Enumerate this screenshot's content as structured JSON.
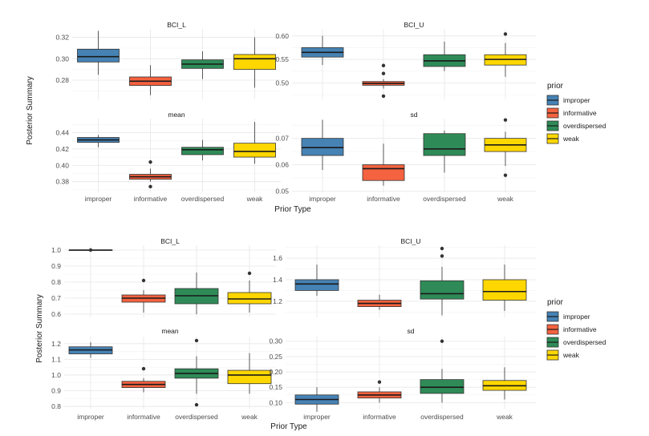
{
  "chart_data": [
    {
      "type": "boxplot",
      "xlabel": "Prior Type",
      "ylabel": "Posterior Summary",
      "categories": [
        "improper",
        "informative",
        "overdispersed",
        "weak"
      ],
      "legend": {
        "title": "prior",
        "entries": [
          "improper",
          "informative",
          "overdispersed",
          "weak"
        ]
      },
      "colors": {
        "improper": "#4682b4",
        "informative": "#f4623f",
        "overdispersed": "#2e8b57",
        "weak": "#ffd700"
      },
      "panels": [
        {
          "title": "BCI_L",
          "ylim": [
            0.262,
            0.328
          ],
          "yticks": [
            0.28,
            0.3,
            0.32
          ],
          "ytick_labels": [
            "0.28",
            "0.30",
            "0.32"
          ],
          "boxes": [
            {
              "category": "improper",
              "min": 0.285,
              "q1": 0.297,
              "median": 0.302,
              "q3": 0.309,
              "max": 0.326,
              "outliers": []
            },
            {
              "category": "informative",
              "min": 0.266,
              "q1": 0.275,
              "median": 0.279,
              "q3": 0.283,
              "max": 0.294,
              "outliers": []
            },
            {
              "category": "overdispersed",
              "min": 0.281,
              "q1": 0.291,
              "median": 0.295,
              "q3": 0.299,
              "max": 0.307,
              "outliers": []
            },
            {
              "category": "weak",
              "min": 0.273,
              "q1": 0.29,
              "median": 0.3,
              "q3": 0.304,
              "max": 0.32,
              "outliers": []
            }
          ]
        },
        {
          "title": "BCI_U",
          "ylim": [
            0.465,
            0.615
          ],
          "yticks": [
            0.5,
            0.55,
            0.6
          ],
          "ytick_labels": [
            "0.50",
            "0.55",
            "0.60"
          ],
          "boxes": [
            {
              "category": "improper",
              "min": 0.538,
              "q1": 0.555,
              "median": 0.565,
              "q3": 0.575,
              "max": 0.6,
              "outliers": []
            },
            {
              "category": "informative",
              "min": 0.488,
              "q1": 0.495,
              "median": 0.499,
              "q3": 0.503,
              "max": 0.508,
              "outliers": [
                0.472,
                0.52,
                0.537
              ]
            },
            {
              "category": "overdispersed",
              "min": 0.525,
              "q1": 0.535,
              "median": 0.547,
              "q3": 0.56,
              "max": 0.588,
              "outliers": []
            },
            {
              "category": "weak",
              "min": 0.513,
              "q1": 0.538,
              "median": 0.55,
              "q3": 0.56,
              "max": 0.585,
              "outliers": [
                0.604
              ]
            }
          ]
        },
        {
          "title": "mean",
          "ylim": [
            0.367,
            0.457
          ],
          "yticks": [
            0.38,
            0.4,
            0.42,
            0.44
          ],
          "ytick_labels": [
            "0.38",
            "0.40",
            "0.42",
            "0.44"
          ],
          "boxes": [
            {
              "category": "improper",
              "min": 0.422,
              "q1": 0.428,
              "median": 0.431,
              "q3": 0.434,
              "max": 0.437,
              "outliers": []
            },
            {
              "category": "informative",
              "min": 0.38,
              "q1": 0.383,
              "median": 0.386,
              "q3": 0.389,
              "max": 0.396,
              "outliers": [
                0.374,
                0.404
              ]
            },
            {
              "category": "overdispersed",
              "min": 0.406,
              "q1": 0.413,
              "median": 0.419,
              "q3": 0.422,
              "max": 0.431,
              "outliers": []
            },
            {
              "category": "weak",
              "min": 0.402,
              "q1": 0.41,
              "median": 0.417,
              "q3": 0.427,
              "max": 0.453,
              "outliers": []
            }
          ]
        },
        {
          "title": "sd",
          "ylim": [
            0.0495,
            0.0775
          ],
          "yticks": [
            0.05,
            0.06,
            0.07
          ],
          "ytick_labels": [
            "0.05",
            "0.06",
            "0.07"
          ],
          "boxes": [
            {
              "category": "improper",
              "min": 0.058,
              "q1": 0.0635,
              "median": 0.0665,
              "q3": 0.07,
              "max": 0.077,
              "outliers": []
            },
            {
              "category": "informative",
              "min": 0.052,
              "q1": 0.054,
              "median": 0.0585,
              "q3": 0.06,
              "max": 0.068,
              "outliers": []
            },
            {
              "category": "overdispersed",
              "min": 0.057,
              "q1": 0.0635,
              "median": 0.066,
              "q3": 0.0718,
              "max": 0.073,
              "outliers": []
            },
            {
              "category": "weak",
              "min": 0.0595,
              "q1": 0.065,
              "median": 0.0675,
              "q3": 0.07,
              "max": 0.0725,
              "outliers": [
                0.056,
                0.077
              ]
            }
          ]
        }
      ]
    },
    {
      "type": "boxplot",
      "xlabel": "Prior Type",
      "ylabel": "Posterior Summary",
      "categories": [
        "improper",
        "informative",
        "overdispersed",
        "weak"
      ],
      "legend": {
        "title": "prior",
        "entries": [
          "improper",
          "informative",
          "overdispersed",
          "weak"
        ]
      },
      "colors": {
        "improper": "#4682b4",
        "informative": "#f4623f",
        "overdispersed": "#2e8b57",
        "weak": "#ffd700"
      },
      "panels": [
        {
          "title": "BCI_L",
          "ylim": [
            0.58,
            1.03
          ],
          "yticks": [
            0.6,
            0.7,
            0.8,
            0.9,
            1.0
          ],
          "ytick_labels": [
            "0.6",
            "0.7",
            "0.8",
            "0.9",
            "1.0"
          ],
          "boxes": [
            {
              "category": "improper",
              "min": 1.0,
              "q1": 1.0,
              "median": 1.0,
              "q3": 1.0,
              "max": 1.0,
              "outliers": [
                1.0
              ]
            },
            {
              "category": "informative",
              "min": 0.61,
              "q1": 0.675,
              "median": 0.7,
              "q3": 0.72,
              "max": 0.75,
              "outliers": [
                0.81
              ]
            },
            {
              "category": "overdispersed",
              "min": 0.6,
              "q1": 0.665,
              "median": 0.715,
              "q3": 0.76,
              "max": 0.86,
              "outliers": []
            },
            {
              "category": "weak",
              "min": 0.61,
              "q1": 0.665,
              "median": 0.695,
              "q3": 0.735,
              "max": 0.81,
              "outliers": [
                0.855
              ]
            }
          ]
        },
        {
          "title": "BCI_U",
          "ylim": [
            1.05,
            1.72
          ],
          "yticks": [
            1.2,
            1.4,
            1.6
          ],
          "ytick_labels": [
            "1.2",
            "1.4",
            "1.6"
          ],
          "boxes": [
            {
              "category": "improper",
              "min": 1.25,
              "q1": 1.3,
              "median": 1.36,
              "q3": 1.4,
              "max": 1.54,
              "outliers": []
            },
            {
              "category": "informative",
              "min": 1.12,
              "q1": 1.15,
              "median": 1.18,
              "q3": 1.21,
              "max": 1.26,
              "outliers": []
            },
            {
              "category": "overdispersed",
              "min": 1.07,
              "q1": 1.22,
              "median": 1.27,
              "q3": 1.39,
              "max": 1.52,
              "outliers": [
                1.62,
                1.69
              ]
            },
            {
              "category": "weak",
              "min": 1.11,
              "q1": 1.21,
              "median": 1.29,
              "q3": 1.4,
              "max": 1.54,
              "outliers": []
            }
          ]
        },
        {
          "title": "mean",
          "ylim": [
            0.785,
            1.245
          ],
          "yticks": [
            0.8,
            0.9,
            1.0,
            1.1,
            1.2
          ],
          "ytick_labels": [
            "0.8",
            "0.9",
            "1.0",
            "1.1",
            "1.2"
          ],
          "boxes": [
            {
              "category": "improper",
              "min": 1.11,
              "q1": 1.135,
              "median": 1.16,
              "q3": 1.18,
              "max": 1.21,
              "outliers": []
            },
            {
              "category": "informative",
              "min": 0.89,
              "q1": 0.92,
              "median": 0.94,
              "q3": 0.96,
              "max": 0.98,
              "outliers": [
                1.04
              ]
            },
            {
              "category": "overdispersed",
              "min": 0.88,
              "q1": 0.98,
              "median": 1.01,
              "q3": 1.04,
              "max": 1.12,
              "outliers": [
                0.81,
                1.22
              ]
            },
            {
              "category": "weak",
              "min": 0.88,
              "q1": 0.945,
              "median": 1.0,
              "q3": 1.03,
              "max": 1.14,
              "outliers": []
            }
          ]
        },
        {
          "title": "sd",
          "ylim": [
            0.08,
            0.315
          ],
          "yticks": [
            0.1,
            0.15,
            0.2,
            0.25,
            0.3
          ],
          "ytick_labels": [
            "0.10",
            "0.15",
            "0.20",
            "0.25",
            "0.30"
          ],
          "boxes": [
            {
              "category": "improper",
              "min": 0.07,
              "q1": 0.095,
              "median": 0.11,
              "q3": 0.125,
              "max": 0.15,
              "outliers": []
            },
            {
              "category": "informative",
              "min": 0.1,
              "q1": 0.115,
              "median": 0.125,
              "q3": 0.135,
              "max": 0.15,
              "outliers": [
                0.167
              ]
            },
            {
              "category": "overdispersed",
              "min": 0.1,
              "q1": 0.13,
              "median": 0.15,
              "q3": 0.175,
              "max": 0.21,
              "outliers": [
                0.3
              ]
            },
            {
              "category": "weak",
              "min": 0.11,
              "q1": 0.14,
              "median": 0.155,
              "q3": 0.172,
              "max": 0.215,
              "outliers": []
            }
          ]
        }
      ]
    }
  ]
}
